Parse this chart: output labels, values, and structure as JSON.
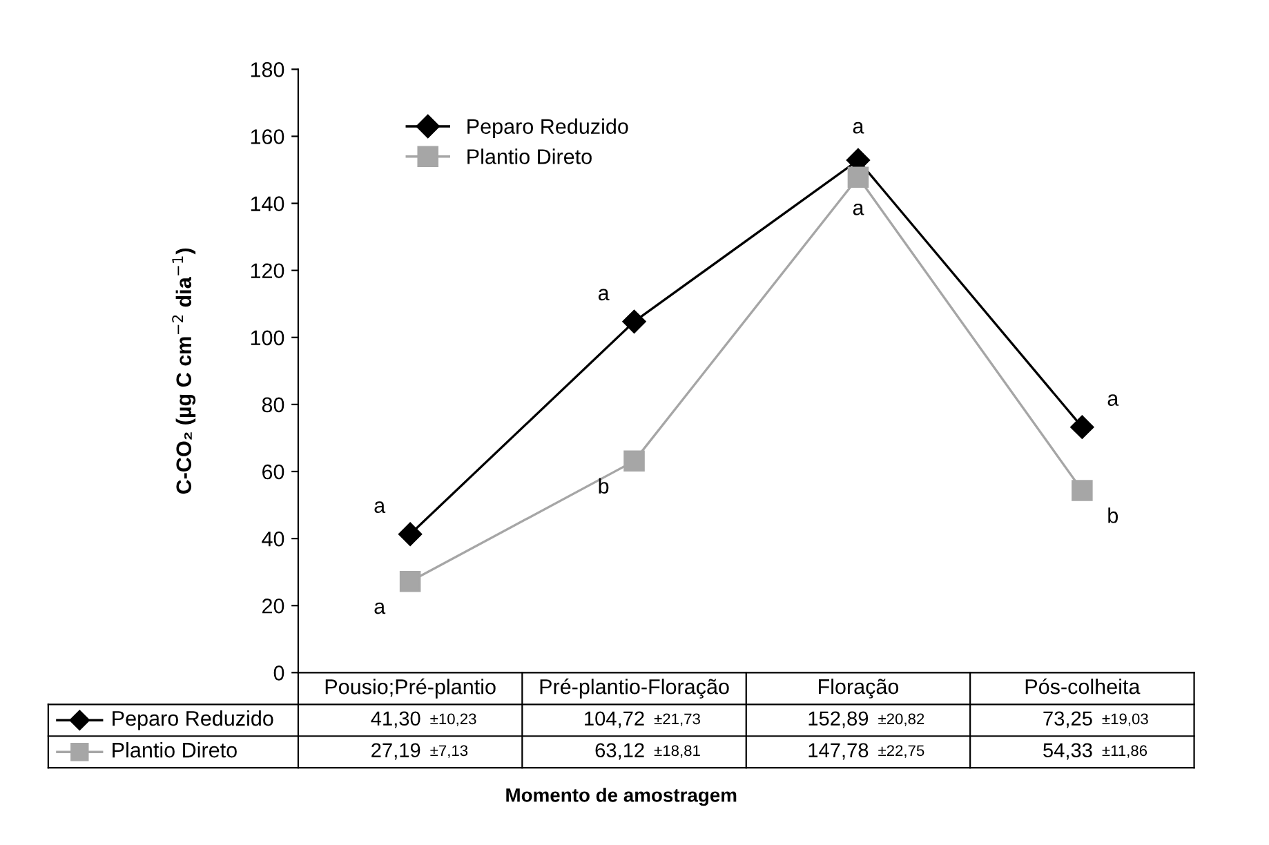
{
  "chart_data": {
    "type": "line",
    "ylabel": "C-CO₂ (µg C cm$^{−2}$ dia$^{−1}$)",
    "categories": [
      "Pousio;Pré-plantio",
      "Pré-plantio-Floração",
      "Floração",
      "Pós-colheita"
    ],
    "series": [
      {
        "name": "Peparo Reduzido",
        "color": "#000000",
        "marker": "diamond",
        "values": [
          41.3,
          104.72,
          152.89,
          73.25
        ],
        "value_labels": [
          "41,30 ±10,23",
          "104,72 ±21,73",
          "152,89 ±20,82",
          "73,25 ±19,03"
        ]
      },
      {
        "name": "Plantio Direto",
        "color": "#a6a6a6",
        "marker": "square",
        "values": [
          27.19,
          63.12,
          147.78,
          54.33
        ],
        "value_labels": [
          "27,19 ±7,13",
          "63,12 ±18,81",
          "147,78 ±22,75",
          "54,33 ±11,86"
        ]
      }
    ],
    "ylim": [
      0,
      180
    ],
    "yticks": [
      0,
      20,
      40,
      60,
      80,
      100,
      120,
      140,
      160,
      180
    ],
    "grid": false,
    "legend": "top left",
    "line_style": "solid",
    "annotations": [
      "a",
      "a",
      "a",
      "b",
      "a",
      "a",
      "a",
      "b",
      "Momento de amostragem"
    ]
  }
}
